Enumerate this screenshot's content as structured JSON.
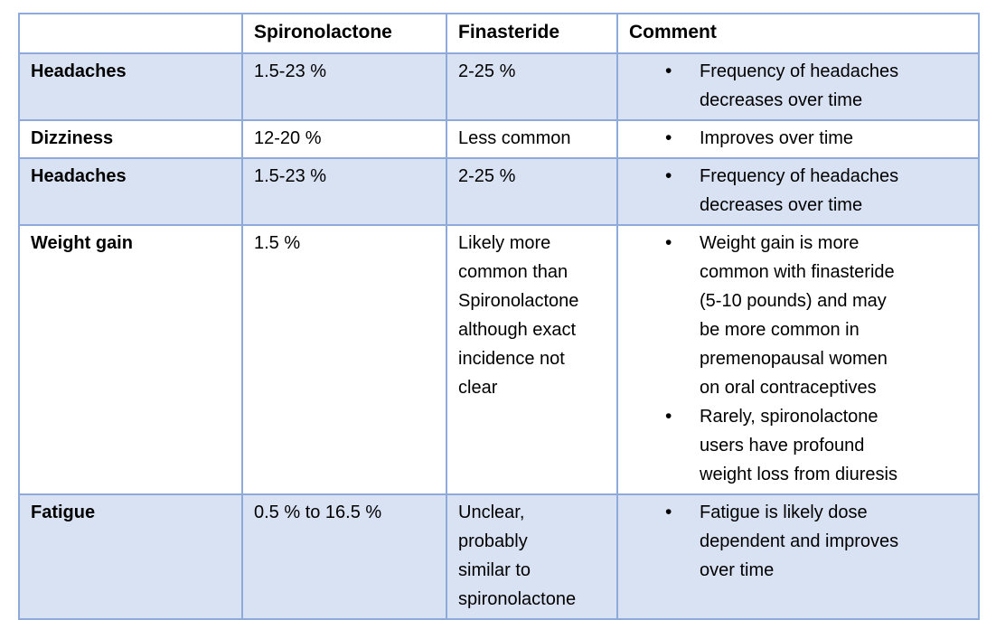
{
  "document": {
    "colors": {
      "row_shade": "#D9E2F3",
      "border": "#8EAADB",
      "text": "#000000",
      "background": "#FFFFFF"
    },
    "table": {
      "headers": [
        "",
        "Spironolactone",
        "Finasteride",
        "Comment"
      ],
      "rows": [
        {
          "side_effect": "Headaches",
          "spironolactone": "1.5-23 %",
          "finasteride": "2-25 %",
          "comments": [
            "Frequency of headaches\ndecreases over time"
          ],
          "shaded": true
        },
        {
          "side_effect": "Dizziness",
          "spironolactone": "12-20 %",
          "finasteride": "Less common",
          "comments": [
            "Improves over time"
          ],
          "shaded": false
        },
        {
          "side_effect": "Headaches",
          "spironolactone": "1.5-23 %",
          "finasteride": "2-25 %",
          "comments": [
            "Frequency of headaches\ndecreases over time"
          ],
          "shaded": true
        },
        {
          "side_effect": "Weight gain",
          "spironolactone": "1.5 %",
          "finasteride": "Likely more\ncommon than\nSpironolactone\nalthough exact\nincidence not\nclear",
          "comments": [
            "Weight gain is more\ncommon with finasteride\n(5-10 pounds) and may\nbe more common in\npremenopausal women\non oral contraceptives",
            "Rarely, spironolactone\nusers have profound\nweight loss from diuresis"
          ],
          "shaded": false
        },
        {
          "side_effect": "Fatigue",
          "spironolactone": "0.5 % to 16.5 %",
          "finasteride": "Unclear,\nprobably\nsimilar to\nspironolactone",
          "comments": [
            "Fatigue is likely dose\ndependent and improves\nover time"
          ],
          "shaded": true
        }
      ]
    }
  }
}
